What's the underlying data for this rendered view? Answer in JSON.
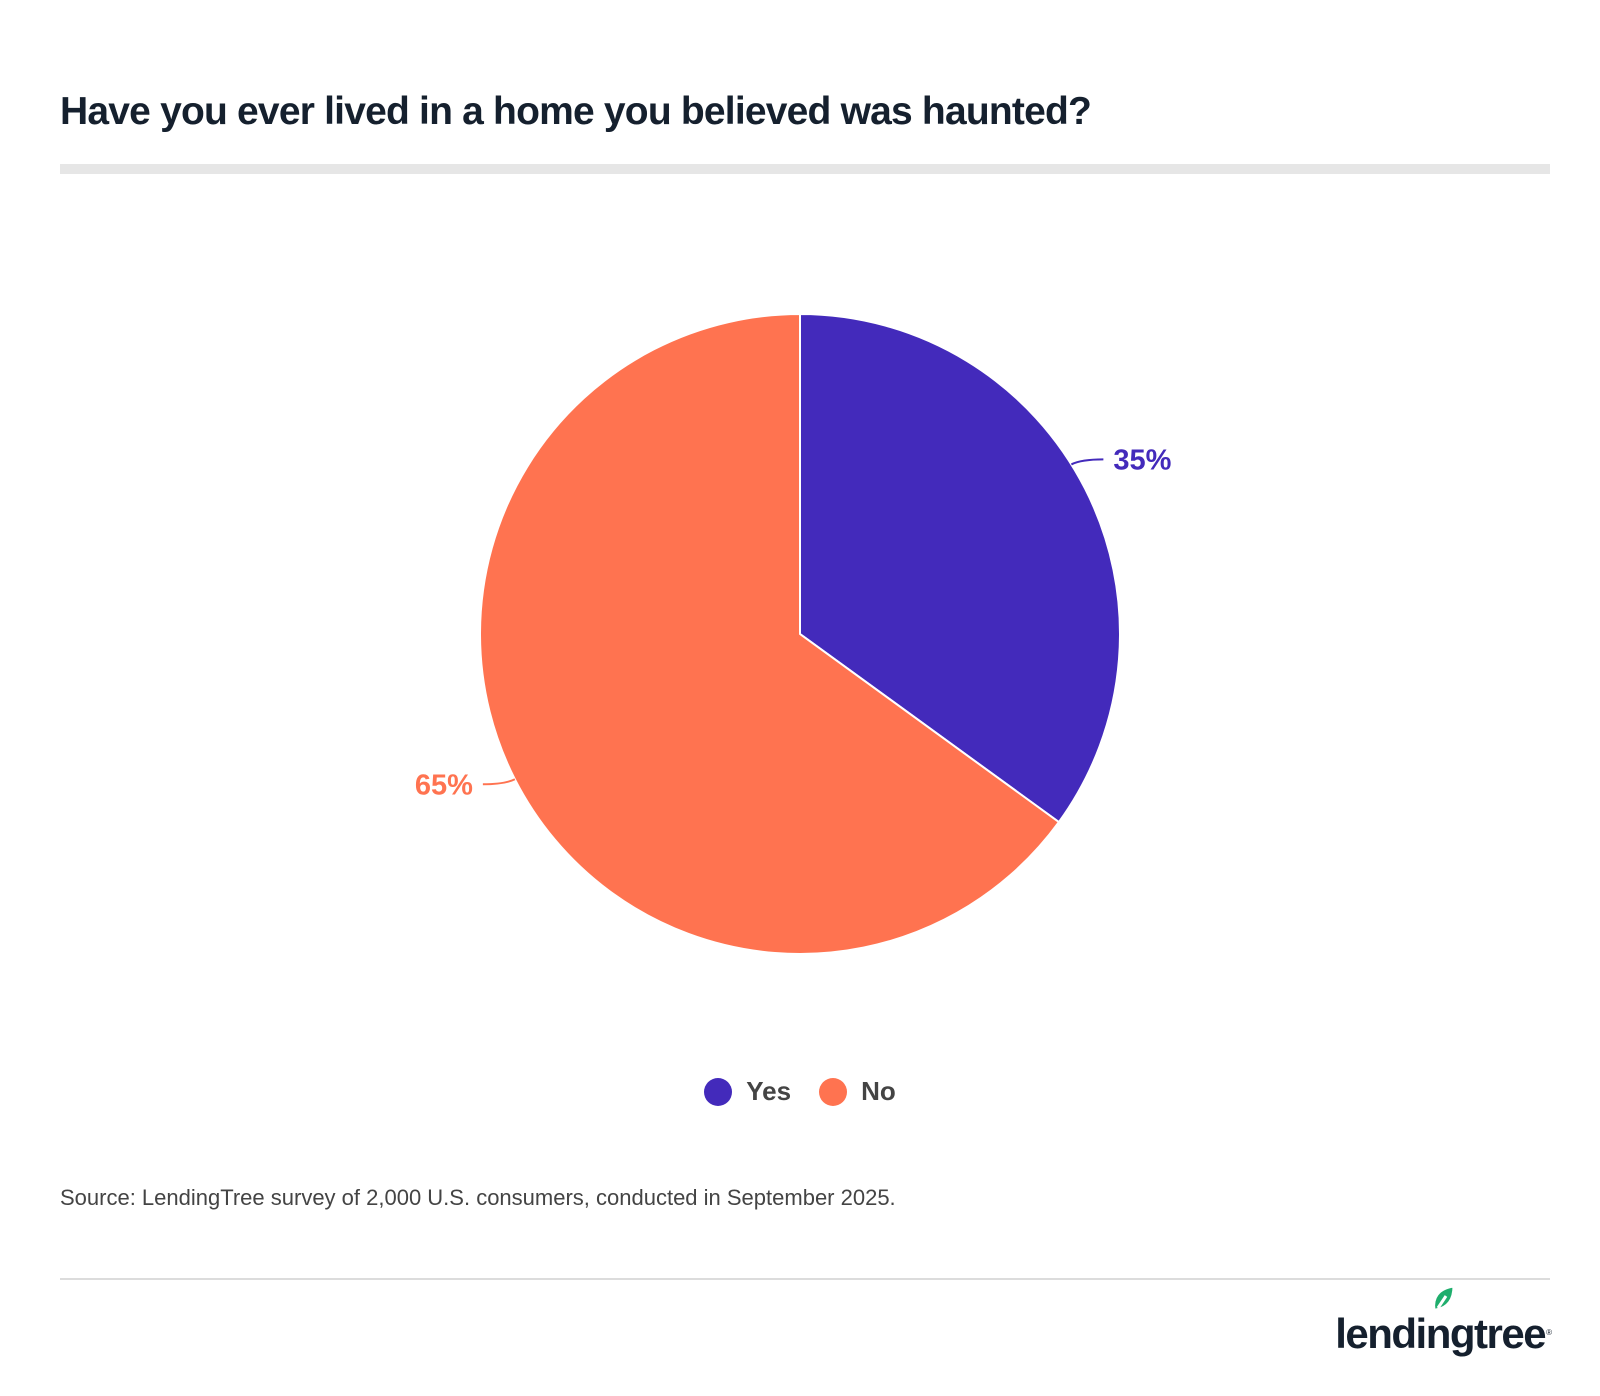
{
  "header": {
    "title": "Have you ever lived in a home you believed was haunted?"
  },
  "chart_data": {
    "type": "pie",
    "title": "Have you ever lived in a home you believed was haunted?",
    "categories": [
      "Yes",
      "No"
    ],
    "values": [
      35,
      65
    ],
    "labels": [
      "35%",
      "65%"
    ],
    "colors": [
      "#432abb",
      "#ff7350"
    ],
    "legend_position": "bottom",
    "start_angle": "12 o'clock, clockwise"
  },
  "legend": {
    "items": [
      {
        "label": "Yes",
        "color": "#432abb"
      },
      {
        "label": "No",
        "color": "#ff7350"
      }
    ]
  },
  "footer": {
    "source": "Source: LendingTree survey of 2,000 U.S. consumers, conducted in September 2025.",
    "logo_text": "lendingtree",
    "logo_mark": "®",
    "logo_leaf_color": "#1fae6d"
  }
}
